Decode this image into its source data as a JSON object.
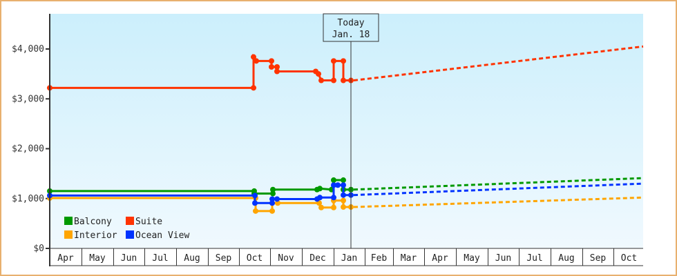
{
  "chart_data": {
    "type": "line",
    "title": "",
    "xlabel": "",
    "ylabel": "",
    "ylim": [
      0,
      4700
    ],
    "y_ticks": [
      "$0",
      "$1,000",
      "$2,000",
      "$3,000",
      "$4,000"
    ],
    "x_ticks": [
      "Apr",
      "May",
      "Jun",
      "Jul",
      "Aug",
      "Sep",
      "Oct",
      "Nov",
      "Dec",
      "Jan",
      "Feb",
      "Mar",
      "Apr",
      "May",
      "Jun",
      "Jul",
      "Aug",
      "Sep",
      "Oct"
    ],
    "grid": false,
    "legend_position": "lower-left inside",
    "annotation": {
      "line1": "Today",
      "line2": "Jan. 18"
    },
    "series": [
      {
        "name": "Balcony",
        "color": "#009900",
        "historical": [
          [
            "Apr",
            1150
          ],
          [
            "Oct",
            1150
          ],
          [
            "Oct",
            1100
          ],
          [
            "Nov",
            1100
          ],
          [
            "Nov",
            1180
          ],
          [
            "Dec",
            1180
          ],
          [
            "Dec",
            1200
          ],
          [
            "Dec",
            1180
          ],
          [
            "Jan",
            1370
          ],
          [
            "Jan",
            1180
          ]
        ],
        "forecast_start": 1180,
        "forecast_end": 1410
      },
      {
        "name": "Suite",
        "color": "#ff3300",
        "historical": [
          [
            "Apr",
            3220
          ],
          [
            "Oct",
            3220
          ],
          [
            "Oct",
            3840
          ],
          [
            "Oct",
            3760
          ],
          [
            "Nov",
            3760
          ],
          [
            "Nov",
            3640
          ],
          [
            "Nov",
            3550
          ],
          [
            "Dec",
            3550
          ],
          [
            "Dec",
            3500
          ],
          [
            "Dec",
            3370
          ],
          [
            "Jan",
            3370
          ],
          [
            "Jan",
            3760
          ],
          [
            "Jan",
            3370
          ]
        ],
        "forecast_start": 3370,
        "forecast_end": 4050
      },
      {
        "name": "Interior",
        "color": "#ffa500",
        "historical": [
          [
            "Apr",
            1010
          ],
          [
            "Oct",
            1010
          ],
          [
            "Oct",
            750
          ],
          [
            "Nov",
            750
          ],
          [
            "Nov",
            910
          ],
          [
            "Dec",
            910
          ],
          [
            "Dec",
            820
          ],
          [
            "Jan",
            820
          ],
          [
            "Jan",
            960
          ],
          [
            "Jan",
            830
          ]
        ],
        "forecast_start": 830,
        "forecast_end": 1020
      },
      {
        "name": "Ocean View",
        "color": "#0033ff",
        "historical": [
          [
            "Apr",
            1060
          ],
          [
            "Oct",
            1060
          ],
          [
            "Oct",
            910
          ],
          [
            "Nov",
            910
          ],
          [
            "Nov",
            990
          ],
          [
            "Dec",
            990
          ],
          [
            "Dec",
            1020
          ],
          [
            "Jan",
            1020
          ],
          [
            "Jan",
            1270
          ],
          [
            "Jan",
            1070
          ]
        ],
        "forecast_start": 1070,
        "forecast_end": 1300
      }
    ]
  },
  "legend": [
    {
      "label": "Balcony",
      "color": "#009900"
    },
    {
      "label": "Suite",
      "color": "#ff3300"
    },
    {
      "label": "Interior",
      "color": "#ffa500"
    },
    {
      "label": "Ocean View",
      "color": "#0033ff"
    }
  ],
  "today_box": {
    "line1": "Today",
    "line2": "Jan. 18"
  }
}
